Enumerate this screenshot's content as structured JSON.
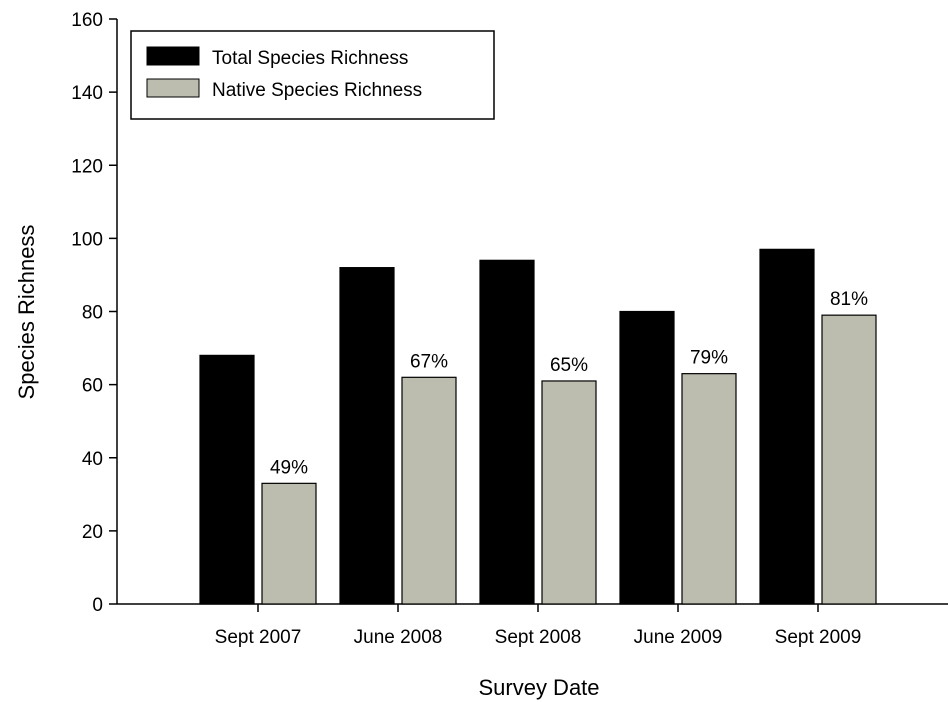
{
  "chart_data": {
    "type": "bar",
    "xlabel": "Survey Date",
    "ylabel": "Species Richness",
    "ylim": [
      0,
      160
    ],
    "yticks": [
      0,
      20,
      40,
      60,
      80,
      100,
      120,
      140,
      160
    ],
    "categories": [
      "Sept 2007",
      "June 2008",
      "Sept 2008",
      "June 2009",
      "Sept 2009"
    ],
    "series": [
      {
        "name": "Total Species Richness",
        "values": [
          68,
          92,
          94,
          80,
          97
        ],
        "color": "#000000"
      },
      {
        "name": "Native Species Richness",
        "values": [
          33,
          62,
          61,
          63,
          79
        ],
        "color": "#bdbdaf",
        "labels": [
          "49%",
          "67%",
          "65%",
          "79%",
          "81%"
        ]
      }
    ],
    "legend_position": "top-left",
    "grid": false
  }
}
